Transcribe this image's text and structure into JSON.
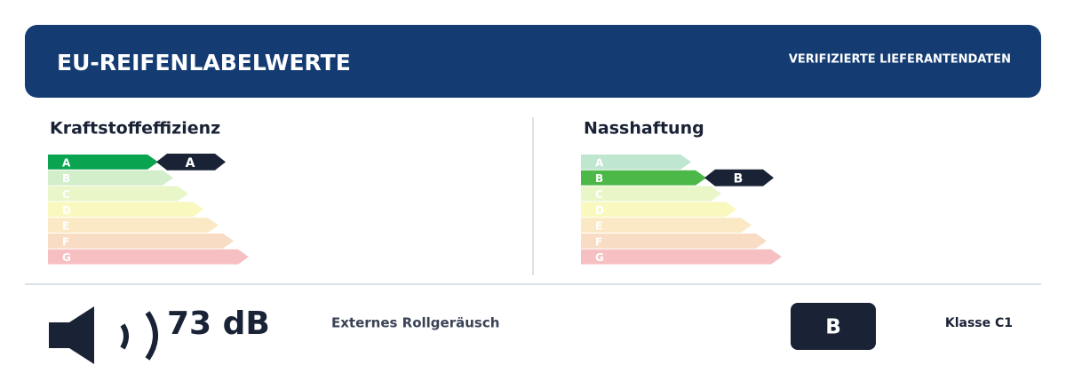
{
  "header": {
    "title": "EU-REIFENLABELWERTE",
    "badge": "VERIFIZIERTE LIEFERANTENDATEN"
  },
  "fuel": {
    "title": "Kraftstoffeffizienz",
    "classes": [
      "A",
      "B",
      "C",
      "D",
      "E",
      "F",
      "G"
    ],
    "rating": "A"
  },
  "wet": {
    "title": "Nasshaftung",
    "classes": [
      "A",
      "B",
      "C",
      "D",
      "E",
      "F",
      "G"
    ],
    "rating": "B"
  },
  "noise": {
    "value": "73 dB",
    "label": "Externes Rollgeräusch",
    "class": "B",
    "vehicle": "Klasse C1"
  }
}
